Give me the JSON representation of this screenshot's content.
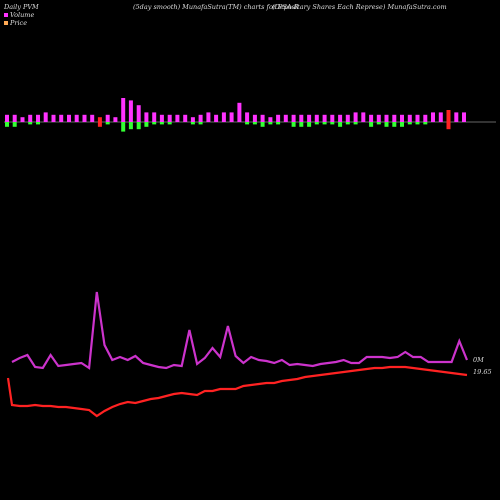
{
  "header": {
    "left": "Daily PVM",
    "center": "(5day smooth) MunafaSutra(TM) charts for PSA-R",
    "right": "(Depositary Shares Each Represe) MunafaSutra.com"
  },
  "legend": {
    "volume": {
      "label": "Volume",
      "color": "#ff33ff"
    },
    "price": {
      "label": "Price",
      "color": "#ffaa55"
    }
  },
  "colors": {
    "up": "#ff33ff",
    "down": "#33ff33",
    "red": "#ff2222",
    "price_line": "#ff2222",
    "volume_line": "#cc33cc",
    "baseline": "#cccccc"
  },
  "chart_data": {
    "type": "bar",
    "title": "(5day smooth) MunafaSutra(TM) charts for PSA-R",
    "volume_bars": {
      "values": [
        3,
        3,
        2,
        3,
        3,
        4,
        3,
        3,
        3,
        3,
        3,
        3,
        2,
        3,
        2,
        10,
        9,
        7,
        4,
        4,
        3,
        3,
        3,
        3,
        2,
        3,
        4,
        3,
        4,
        4,
        8,
        4,
        3,
        3,
        2,
        3,
        3,
        3,
        3,
        3,
        3,
        3,
        3,
        3,
        3,
        4,
        4,
        3,
        3,
        3,
        3,
        3,
        3,
        3,
        3,
        4,
        4,
        5,
        4,
        4
      ],
      "down": [
        2,
        2,
        0,
        1,
        1,
        0,
        0,
        0,
        0,
        0,
        0,
        0,
        2,
        1,
        0,
        4,
        3,
        3,
        2,
        1,
        1,
        1,
        0,
        0,
        1,
        1,
        0,
        0,
        0,
        0,
        0,
        1,
        1,
        2,
        1,
        1,
        0,
        2,
        2,
        2,
        1,
        1,
        1,
        2,
        1,
        1,
        0,
        2,
        1,
        2,
        2,
        2,
        1,
        1,
        1,
        0,
        0,
        3,
        0,
        0
      ],
      "colors": [
        "up",
        "up",
        "up",
        "up",
        "up",
        "up",
        "up",
        "up",
        "up",
        "up",
        "up",
        "up",
        "red",
        "up",
        "up",
        "up",
        "up",
        "up",
        "up",
        "up",
        "up",
        "up",
        "up",
        "up",
        "up",
        "up",
        "up",
        "up",
        "up",
        "up",
        "up",
        "up",
        "up",
        "up",
        "up",
        "up",
        "up",
        "up",
        "up",
        "up",
        "up",
        "up",
        "up",
        "up",
        "up",
        "up",
        "up",
        "up",
        "up",
        "up",
        "up",
        "up",
        "up",
        "up",
        "up",
        "up",
        "up",
        "red",
        "up",
        "up"
      ]
    },
    "volume_line": [
      362,
      358,
      355,
      367,
      368,
      355,
      366,
      365,
      364,
      363,
      368,
      292,
      345,
      360,
      357,
      360,
      356,
      363,
      365,
      367,
      368,
      365,
      366,
      330,
      364,
      358,
      348,
      357,
      326,
      356,
      363,
      357,
      360,
      361,
      363,
      360,
      365,
      364,
      365,
      366,
      364,
      363,
      362,
      360,
      363,
      363,
      357,
      357,
      357,
      358,
      357,
      352,
      357,
      357,
      362,
      362,
      362,
      362,
      341,
      360
    ],
    "price_line": [
      405,
      406,
      406,
      405,
      406,
      406,
      407,
      407,
      408,
      409,
      410,
      416,
      411,
      407,
      404,
      402,
      403,
      401,
      399,
      398,
      396,
      394,
      393,
      394,
      395,
      391,
      391,
      389,
      389,
      389,
      386,
      385,
      384,
      383,
      383,
      381,
      380,
      379,
      377,
      376,
      375,
      374,
      373,
      372,
      371,
      370,
      369,
      368,
      368,
      367,
      367,
      367,
      368,
      369,
      370,
      371,
      372,
      373,
      374,
      375
    ],
    "price_label": "19.65",
    "volume_label": "0M",
    "ylim": [
      0,
      500
    ]
  }
}
